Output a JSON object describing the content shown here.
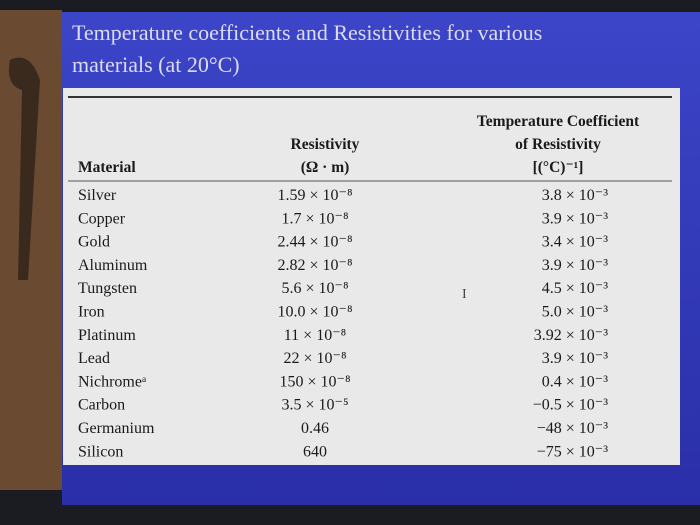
{
  "title": [
    "Temperature coefficients and Resistivities for various",
    "materials (at 20°C)"
  ],
  "table": {
    "headers": [
      [
        "Material"
      ],
      [
        "Resistivity",
        "(Ω · m)"
      ],
      [
        "Temperature Coefficient",
        "of Resistivity",
        "[(°C)⁻¹]"
      ]
    ],
    "rows": [
      [
        "Silver",
        "1.59 × 10⁻⁸",
        "3.8 × 10⁻³"
      ],
      [
        "Copper",
        "1.7 × 10⁻⁸",
        "3.9 × 10⁻³"
      ],
      [
        "Gold",
        "2.44 × 10⁻⁸",
        "3.4 × 10⁻³"
      ],
      [
        "Aluminum",
        "2.82 × 10⁻⁸",
        "3.9 × 10⁻³"
      ],
      [
        "Tungsten",
        "5.6 × 10⁻⁸",
        "4.5 × 10⁻³"
      ],
      [
        "Iron",
        "10.0 × 10⁻⁸",
        "5.0 × 10⁻³"
      ],
      [
        "Platinum",
        "11 × 10⁻⁸",
        "3.92 × 10⁻³"
      ],
      [
        "Lead",
        "22 × 10⁻⁸",
        "3.9 × 10⁻³"
      ],
      [
        "Nichromeᵃ",
        "150 × 10⁻⁸",
        "0.4 × 10⁻³"
      ],
      [
        "Carbon",
        "3.5 × 10⁻⁵",
        "−0.5 × 10⁻³"
      ],
      [
        "Germanium",
        "0.46",
        "−48 × 10⁻³"
      ],
      [
        "Silicon",
        "640",
        "−75 × 10⁻³"
      ]
    ]
  }
}
